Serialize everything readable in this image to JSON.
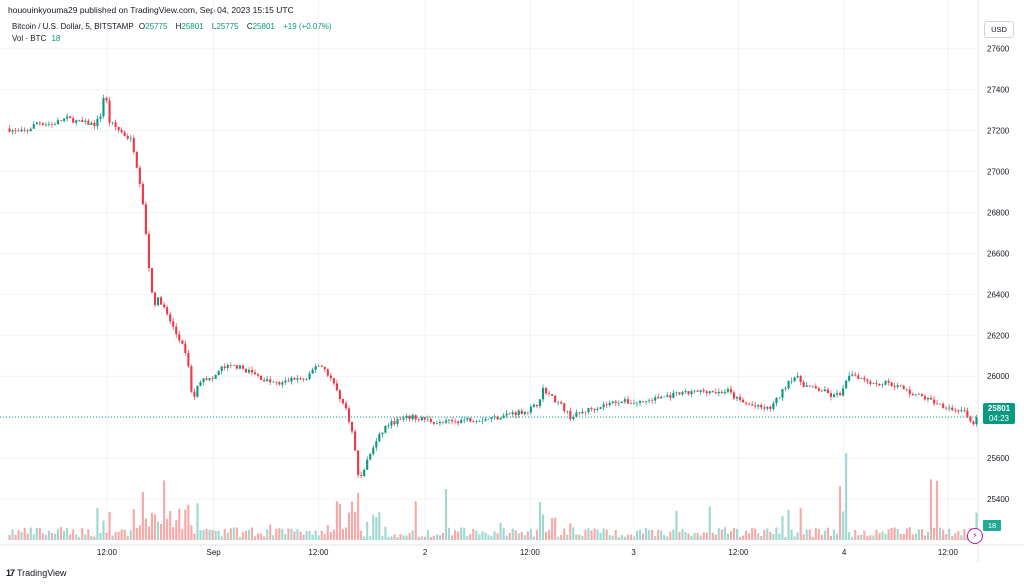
{
  "header": {
    "published_line": "hououinkyouma29 published on TradingView.com, Sep 04, 2023 15:15 UTC",
    "symbol_line": "Bitcoin / U.S. Dollar, 5, BITSTAMP",
    "ohlc": {
      "o_label": "O",
      "o_value": "25775",
      "h_label": "H",
      "h_value": "25801",
      "l_label": "L",
      "l_value": "25775",
      "c_label": "C",
      "c_value": "25801",
      "change": "+19 (+0.07%)"
    },
    "volume_line": {
      "label": "Vol · BTC",
      "value": "18"
    }
  },
  "currency_button": "USD",
  "last_price": {
    "price": "25801",
    "countdown": "04:23"
  },
  "volume_tag": "18",
  "branding": {
    "logo_text": "TradingView",
    "logo_mark": "17"
  },
  "colors": {
    "up": "#089981",
    "down": "#f23645",
    "vol_up": "#9ed8cf",
    "vol_down": "#f7a9a7",
    "grid": "#f0f3fa",
    "last_price_line": "#089981"
  },
  "chart_data": {
    "type": "candlestick",
    "symbol": "Bitcoin / U.S. Dollar",
    "interval": "5",
    "exchange": "BITSTAMP",
    "ylim": [
      25200,
      27750
    ],
    "y_ticks": [
      25400,
      25600,
      25800,
      26000,
      26200,
      26400,
      26600,
      26800,
      27000,
      27200,
      27400,
      27600
    ],
    "x_ticks": [
      {
        "label": "12:00",
        "pos": 0.102
      },
      {
        "label": "Sep",
        "pos": 0.212
      },
      {
        "label": "12:00",
        "pos": 0.32
      },
      {
        "label": "2",
        "pos": 0.43
      },
      {
        "label": "12:00",
        "pos": 0.538
      },
      {
        "label": "3",
        "pos": 0.645
      },
      {
        "label": "12:00",
        "pos": 0.753
      },
      {
        "label": "4",
        "pos": 0.862
      },
      {
        "label": "12:00",
        "pos": 0.969
      }
    ],
    "price_path": [
      [
        0.0,
        27210
      ],
      [
        0.01,
        27190
      ],
      [
        0.02,
        27200
      ],
      [
        0.03,
        27240
      ],
      [
        0.045,
        27230
      ],
      [
        0.06,
        27260
      ],
      [
        0.075,
        27240
      ],
      [
        0.09,
        27230
      ],
      [
        0.097,
        27290
      ],
      [
        0.1,
        27440
      ],
      [
        0.103,
        27250
      ],
      [
        0.11,
        27220
      ],
      [
        0.12,
        27180
      ],
      [
        0.128,
        27150
      ],
      [
        0.132,
        27050
      ],
      [
        0.138,
        26900
      ],
      [
        0.142,
        26700
      ],
      [
        0.146,
        26500
      ],
      [
        0.15,
        26350
      ],
      [
        0.156,
        26380
      ],
      [
        0.162,
        26320
      ],
      [
        0.168,
        26260
      ],
      [
        0.174,
        26200
      ],
      [
        0.18,
        26150
      ],
      [
        0.186,
        26050
      ],
      [
        0.19,
        25880
      ],
      [
        0.195,
        25940
      ],
      [
        0.2,
        26000
      ],
      [
        0.21,
        25980
      ],
      [
        0.22,
        26040
      ],
      [
        0.235,
        26050
      ],
      [
        0.25,
        26020
      ],
      [
        0.265,
        25980
      ],
      [
        0.28,
        25960
      ],
      [
        0.295,
        25990
      ],
      [
        0.308,
        25980
      ],
      [
        0.318,
        26060
      ],
      [
        0.326,
        26040
      ],
      [
        0.334,
        25980
      ],
      [
        0.342,
        25900
      ],
      [
        0.35,
        25820
      ],
      [
        0.356,
        25700
      ],
      [
        0.362,
        25480
      ],
      [
        0.368,
        25560
      ],
      [
        0.375,
        25640
      ],
      [
        0.382,
        25700
      ],
      [
        0.39,
        25760
      ],
      [
        0.4,
        25780
      ],
      [
        0.415,
        25800
      ],
      [
        0.43,
        25790
      ],
      [
        0.445,
        25770
      ],
      [
        0.46,
        25780
      ],
      [
        0.475,
        25790
      ],
      [
        0.49,
        25790
      ],
      [
        0.505,
        25800
      ],
      [
        0.52,
        25820
      ],
      [
        0.535,
        25830
      ],
      [
        0.545,
        25860
      ],
      [
        0.552,
        25940
      ],
      [
        0.56,
        25900
      ],
      [
        0.57,
        25860
      ],
      [
        0.58,
        25800
      ],
      [
        0.59,
        25820
      ],
      [
        0.6,
        25840
      ],
      [
        0.615,
        25860
      ],
      [
        0.63,
        25880
      ],
      [
        0.645,
        25870
      ],
      [
        0.66,
        25880
      ],
      [
        0.675,
        25900
      ],
      [
        0.69,
        25910
      ],
      [
        0.705,
        25920
      ],
      [
        0.72,
        25930
      ],
      [
        0.732,
        25920
      ],
      [
        0.742,
        25930
      ],
      [
        0.748,
        25900
      ],
      [
        0.758,
        25870
      ],
      [
        0.772,
        25850
      ],
      [
        0.785,
        25840
      ],
      [
        0.795,
        25900
      ],
      [
        0.805,
        25980
      ],
      [
        0.812,
        26000
      ],
      [
        0.82,
        25960
      ],
      [
        0.83,
        25940
      ],
      [
        0.84,
        25930
      ],
      [
        0.85,
        25900
      ],
      [
        0.86,
        25920
      ],
      [
        0.868,
        26020
      ],
      [
        0.876,
        26000
      ],
      [
        0.886,
        25980
      ],
      [
        0.896,
        25960
      ],
      [
        0.906,
        25970
      ],
      [
        0.918,
        25950
      ],
      [
        0.93,
        25920
      ],
      [
        0.942,
        25900
      ],
      [
        0.952,
        25880
      ],
      [
        0.962,
        25860
      ],
      [
        0.97,
        25850
      ],
      [
        0.976,
        25830
      ],
      [
        0.982,
        25840
      ],
      [
        0.988,
        25810
      ],
      [
        0.993,
        25760
      ],
      [
        1.0,
        25801
      ]
    ],
    "last_price": 25801,
    "volume_last": 18,
    "grid": true
  }
}
